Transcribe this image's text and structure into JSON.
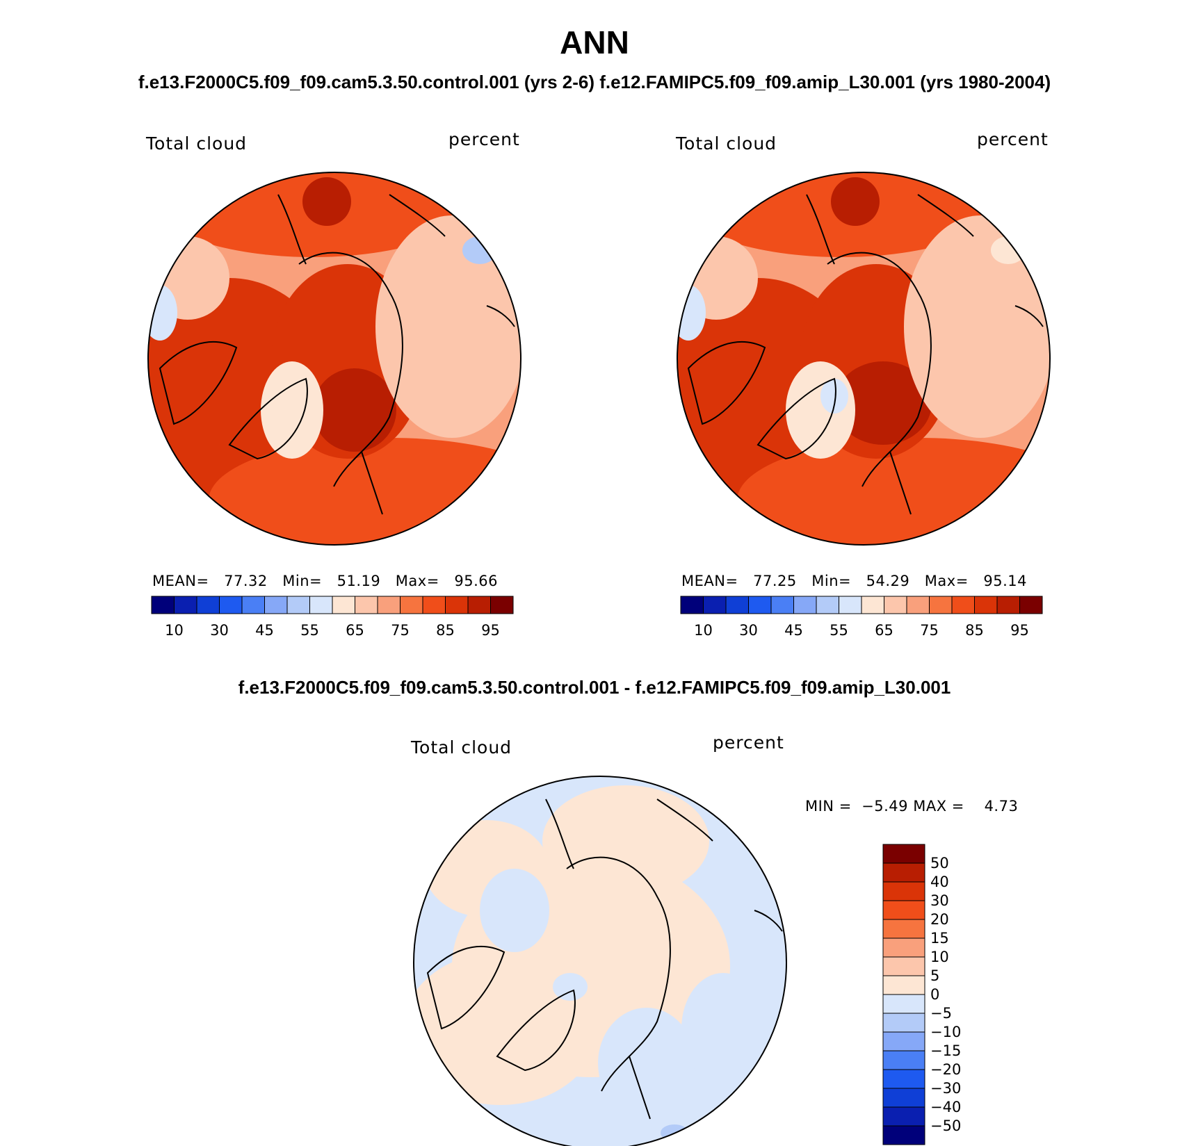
{
  "title": "ANN",
  "subtitle_top": "f.e13.F2000C5.f09_f09.cam5.3.50.control.001 (yrs 2-6)  f.e12.FAMIPC5.f09_f09.amip_L30.001 (yrs 1980-2004)",
  "subtitle_diff": "f.e13.F2000C5.f09_f09.cam5.3.50.control.001 - f.e12.FAMIPC5.f09_f09.amip_L30.001",
  "palette_abs": [
    "#00007a",
    "#0a1fb0",
    "#0f3fd6",
    "#1e5af0",
    "#4a7ff5",
    "#86a8f7",
    "#b3cbf8",
    "#d8e6fb",
    "#fde6d4",
    "#fcc6ac",
    "#f9a07c",
    "#f6743f",
    "#f04e1a",
    "#da3408",
    "#b81e02",
    "#7a0000"
  ],
  "palette_diff": [
    "#00007a",
    "#0a1fb0",
    "#0f3fd6",
    "#1e5af0",
    "#4a7ff5",
    "#86a8f7",
    "#b3cbf8",
    "#d8e6fb",
    "#fde6d4",
    "#fcc6ac",
    "#f9a07c",
    "#f6743f",
    "#f04e1a",
    "#da3408",
    "#b81e02",
    "#7a0000"
  ],
  "panel_left": {
    "field_label": "Total cloud",
    "units_label": "percent",
    "stats": {
      "mean_label": "MEAN=",
      "mean": "77.32",
      "min_label": "Min=",
      "min": "51.19",
      "max_label": "Max=",
      "max": "95.66"
    },
    "ticks": [
      "10",
      "30",
      "45",
      "55",
      "65",
      "75",
      "85",
      "95"
    ]
  },
  "panel_right": {
    "field_label": "Total cloud",
    "units_label": "percent",
    "stats": {
      "mean_label": "MEAN=",
      "mean": "77.25",
      "min_label": "Min=",
      "min": "54.29",
      "max_label": "Max=",
      "max": "95.14"
    },
    "ticks": [
      "10",
      "30",
      "45",
      "55",
      "65",
      "75",
      "85",
      "95"
    ]
  },
  "panel_diff": {
    "field_label": "Total cloud",
    "units_label": "percent",
    "min_label": "MIN =",
    "min": "−5.49",
    "max_label": "MAX =",
    "max": "4.73",
    "ticks": [
      "50",
      "40",
      "30",
      "20",
      "15",
      "10",
      "5",
      "0",
      "−5",
      "−10",
      "−15",
      "−20",
      "−30",
      "−40",
      "−50"
    ]
  }
}
